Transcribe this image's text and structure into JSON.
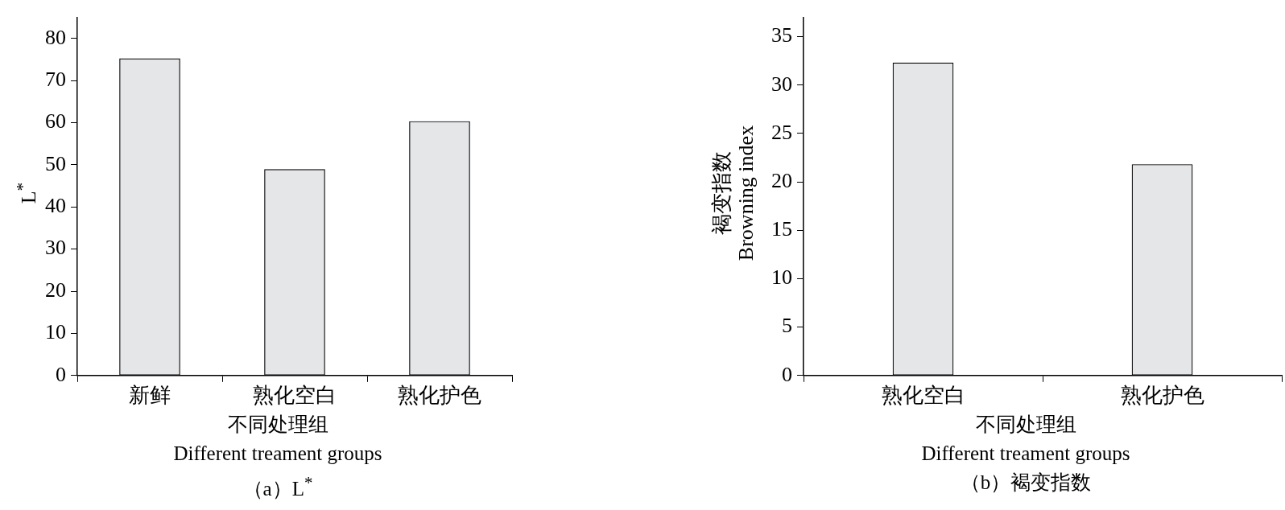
{
  "chart_data": [
    {
      "type": "bar",
      "title": "（a）L$^{*}$",
      "xlabel": "不同处理组\nDifferent treament groups",
      "ylabel": "L$^{*}$",
      "categories": [
        "新鲜",
        "熟化空白",
        "熟化护色"
      ],
      "values": [
        75.2,
        48.9,
        60.3
      ],
      "color": "#e5e6e8",
      "ylim": [
        0,
        85
      ],
      "yticks": [
        0,
        10,
        20,
        30,
        40,
        50,
        60,
        70,
        80
      ]
    },
    {
      "type": "bar",
      "title": "（b）褐变指数",
      "xlabel": "不同处理组\nDifferent treament groups",
      "ylabel": "褐变指数\nBrowning index",
      "categories": [
        "熟化空白",
        "熟化护色"
      ],
      "values": [
        32.3,
        21.8
      ],
      "color": "#e5e6e8",
      "ylim": [
        0,
        37
      ],
      "yticks": [
        0,
        5,
        10,
        15,
        20,
        25,
        30,
        35
      ]
    }
  ]
}
